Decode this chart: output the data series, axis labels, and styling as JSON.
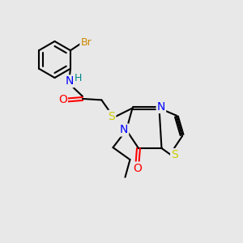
{
  "background_color": "#e8e8e8",
  "bond_color": "#000000",
  "atom_colors": {
    "N": "#0000ff",
    "O": "#ff0000",
    "S": "#cccc00",
    "Br": "#cc8800",
    "H": "#008888"
  },
  "figsize": [
    3.0,
    3.0
  ],
  "dpi": 100,
  "lw": 1.5
}
